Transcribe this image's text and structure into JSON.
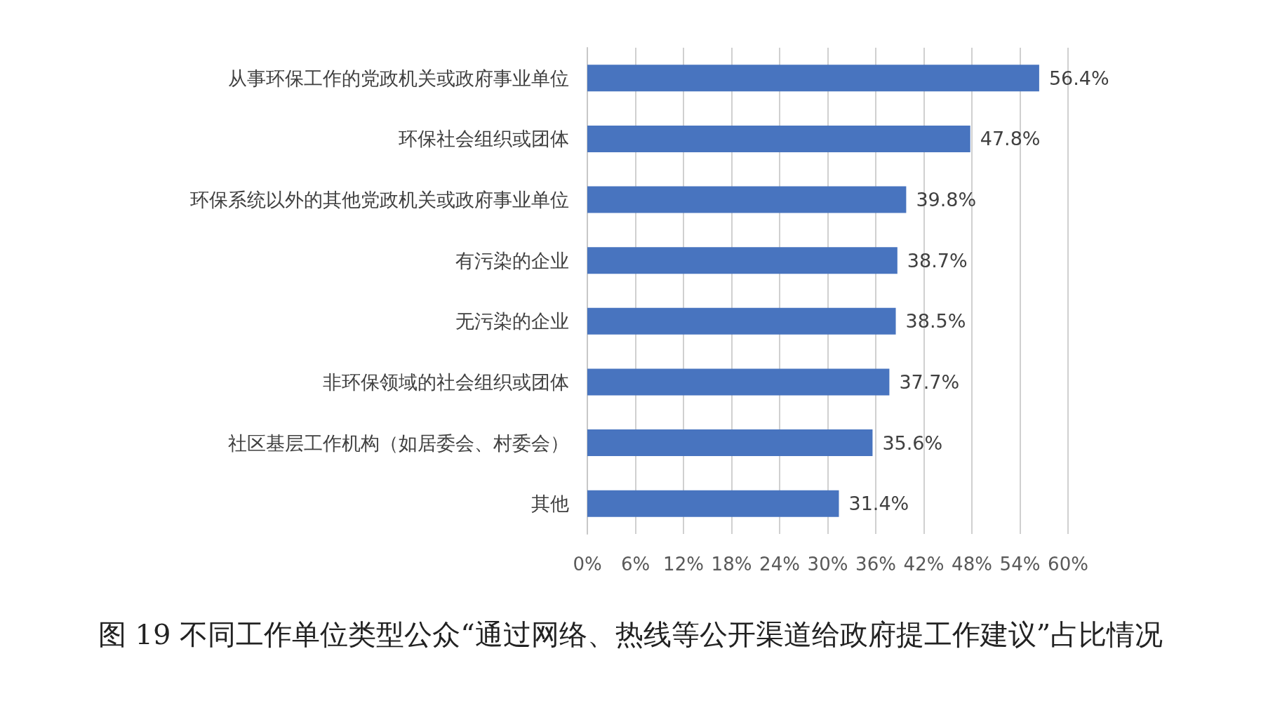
{
  "chart_data": {
    "type": "bar",
    "orientation": "horizontal",
    "title": "图 19 不同工作单位类型公众“通过网络、热线等公开渠道给政府提工作建议”占比情况",
    "categories": [
      "从事环保工作的党政机关或政府事业单位",
      "环保社会组织或团体",
      "环保系统以外的其他党政机关或政府事业单位",
      "有污染的企业",
      "无污染的企业",
      "非环保领域的社会组织或团体",
      "社区基层工作机构（如居委会、村委会）",
      "其他"
    ],
    "values": [
      56.4,
      47.8,
      39.8,
      38.7,
      38.5,
      37.7,
      35.6,
      31.4
    ],
    "value_labels": [
      "56.4%",
      "47.8%",
      "39.8%",
      "38.7%",
      "38.5%",
      "37.7%",
      "35.6%",
      "31.4%"
    ],
    "color": "#4874bf",
    "xlim": [
      0,
      60
    ],
    "xticks": [
      {
        "value": 0,
        "label": "0%"
      },
      {
        "value": 6,
        "label": "6%"
      },
      {
        "value": 12,
        "label": "12%"
      },
      {
        "value": 18,
        "label": "18%"
      },
      {
        "value": 24,
        "label": "24%"
      },
      {
        "value": 30,
        "label": "30%"
      },
      {
        "value": 36,
        "label": "36%"
      },
      {
        "value": 42,
        "label": "42%"
      },
      {
        "value": 48,
        "label": "48%"
      },
      {
        "value": 54,
        "label": "54%"
      },
      {
        "value": 60,
        "label": "60%"
      }
    ],
    "grid": "x"
  }
}
